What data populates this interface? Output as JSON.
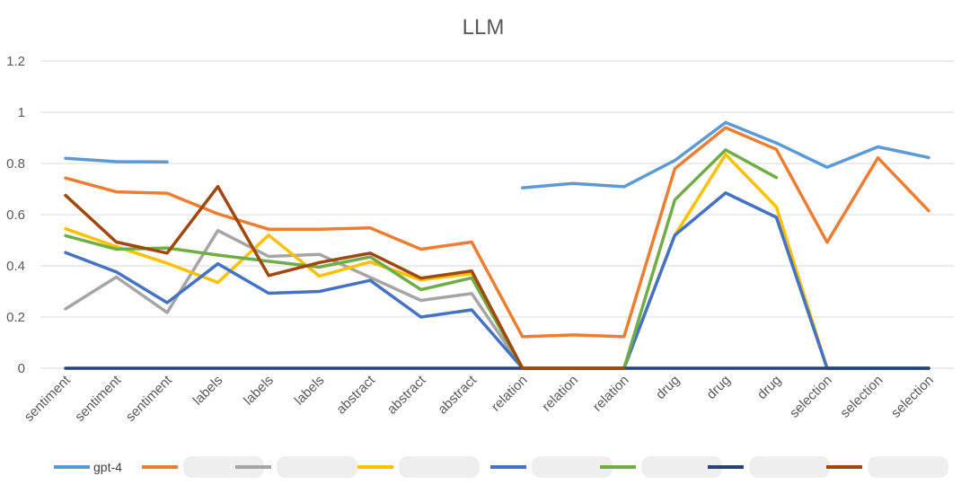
{
  "chart_data": {
    "type": "line",
    "title": "LLM",
    "xlabel": "",
    "ylabel": "",
    "ylim": [
      0,
      1.2
    ],
    "yticks": [
      0,
      0.2,
      0.4,
      0.6,
      0.8,
      1,
      1.2
    ],
    "ytick_labels": [
      "0",
      "0.2",
      "0.4",
      "0.6",
      "0.8",
      "1",
      "1.2"
    ],
    "grid": true,
    "legend_position": "bottom",
    "categories": [
      "sentiment",
      "sentiment",
      "sentiment",
      "labels",
      "labels",
      "labels",
      "abstract",
      "abstract",
      "abstract",
      "relation",
      "relation",
      "relation",
      "drug",
      "drug",
      "drug",
      "selection",
      "selection",
      "selection"
    ],
    "series": [
      {
        "name": "gpt-4",
        "color": "#5B9BD5",
        "values": [
          0.82,
          0.807,
          0.806,
          null,
          null,
          null,
          null,
          null,
          null,
          0.705,
          0.722,
          0.709,
          0.812,
          0.96,
          0.88,
          0.785,
          0.865,
          0.823
        ]
      },
      {
        "name": "",
        "color": "#ED7D31",
        "values": [
          0.743,
          0.689,
          0.684,
          0.603,
          0.543,
          0.543,
          0.548,
          0.465,
          0.493,
          0.123,
          0.13,
          0.123,
          0.78,
          0.94,
          0.855,
          0.492,
          0.822,
          0.615
        ]
      },
      {
        "name": "",
        "color": "#A5A5A5",
        "values": [
          0.232,
          0.356,
          0.218,
          0.538,
          0.437,
          0.445,
          0.355,
          0.265,
          0.292,
          0,
          0,
          0,
          0.52,
          0.685,
          0.59,
          0,
          0,
          0
        ]
      },
      {
        "name": "",
        "color": "#FFC000",
        "values": [
          0.545,
          0.475,
          0.41,
          0.335,
          0.52,
          0.36,
          0.415,
          0.345,
          0.37,
          0,
          0,
          0,
          0.52,
          0.835,
          0.63,
          0,
          0,
          0
        ]
      },
      {
        "name": "",
        "color": "#4472C4",
        "values": [
          0.452,
          0.376,
          0.256,
          0.408,
          0.293,
          0.3,
          0.343,
          0.2,
          0.228,
          0,
          0,
          0,
          0.52,
          0.685,
          0.59,
          0,
          0,
          0
        ]
      },
      {
        "name": "",
        "color": "#70AD47",
        "values": [
          0.518,
          0.465,
          0.47,
          0.442,
          0.418,
          0.395,
          0.435,
          0.307,
          0.353,
          0,
          0,
          0,
          0.658,
          0.853,
          0.745,
          null,
          null,
          null
        ]
      },
      {
        "name": "",
        "color": "#264478",
        "values": [
          0,
          0,
          0,
          0,
          0,
          0,
          0,
          0,
          0,
          0,
          0,
          0,
          0,
          0,
          0,
          0,
          0,
          0
        ]
      },
      {
        "name": "",
        "color": "#9E480E",
        "values": [
          0.675,
          0.493,
          0.45,
          0.71,
          0.362,
          0.413,
          0.45,
          0.352,
          0.38,
          0,
          0,
          0,
          null,
          null,
          null,
          null,
          null,
          null
        ]
      }
    ]
  }
}
